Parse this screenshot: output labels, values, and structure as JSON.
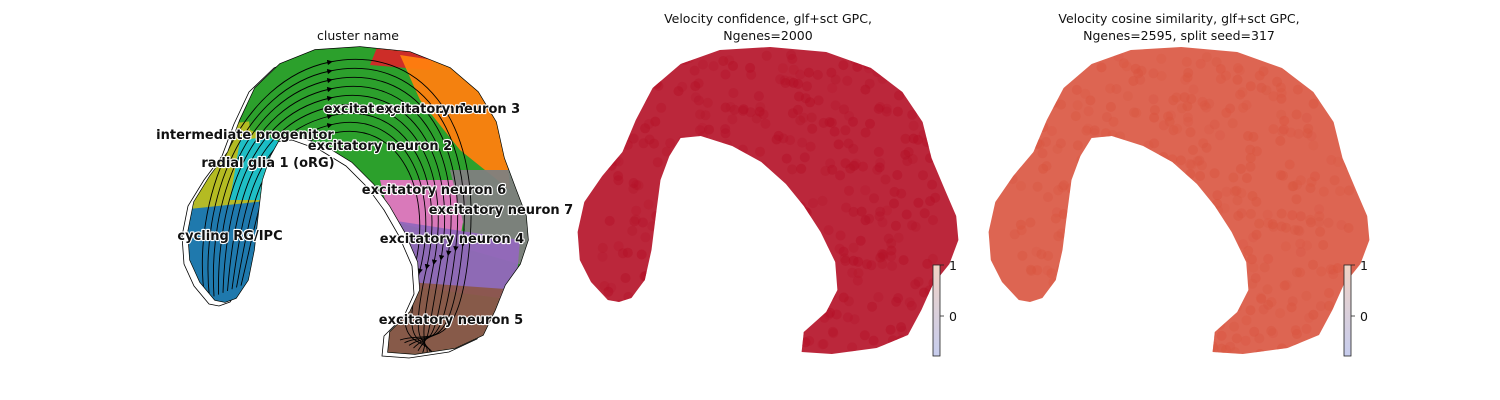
{
  "colors": {
    "radial glia 1 (oRG)": "#17becf",
    "cycling RG/IPC": "#1f77b4",
    "intermediate progenitor": "#bcbd22",
    "excitatory neuron 1": "#d62728",
    "excitatory neuron 2": "#2ca02c",
    "excitatory neuron 3": "#ff7f0e",
    "excitatory neuron 4": "#9467bd",
    "excitatory neuron 5": "#8c564b",
    "excitatory neuron 6": "#e377c2",
    "excitatory neuron 7": "#7f7f7f",
    "confidence": "#b40f26",
    "cosine": "#d9543f",
    "colorbar_high": "#f0d2c4",
    "colorbar_low": "#c7cdee"
  },
  "chart_data": [
    {
      "type": "scatter",
      "title": "cluster name",
      "legend": "on data",
      "grid": false,
      "arrows": "streamlines",
      "categories": [
        {
          "name": "intermediate progenitor",
          "label": "intermediate progenitor"
        },
        {
          "name": "radial glia 1 (oRG)",
          "label": "radial glia 1 (oRG)"
        },
        {
          "name": "cycling RG/IPC",
          "label": "cycling RG/IPC"
        },
        {
          "name": "excitatory neuron 1",
          "label": "excitatory neuron 1"
        },
        {
          "name": "excitatory neuron 3",
          "label": "excitatory neuron 3"
        },
        {
          "name": "excitatory neuron 2",
          "label": "excitatory neuron 2"
        },
        {
          "name": "excitatory neuron 6",
          "label": "excitatory neuron 6"
        },
        {
          "name": "excitatory neuron 7",
          "label": "excitatory neuron 7"
        },
        {
          "name": "excitatory neuron 4",
          "label": "excitatory neuron 4"
        },
        {
          "name": "excitatory neuron 5",
          "label": "excitatory neuron 5"
        }
      ]
    },
    {
      "type": "scatter",
      "title_line1": "Velocity confidence, glf+sct GPC,",
      "title_line2": "Ngenes=2000",
      "colorbar": {
        "ticks": [
          "1",
          "0"
        ],
        "range": [
          -0.7,
          1
        ]
      }
    },
    {
      "type": "scatter",
      "title_line1": "Velocity cosine similarity, glf+sct GPC,",
      "title_line2": "Ngenes=2595, split seed=317",
      "colorbar": {
        "ticks": [
          "1",
          "0"
        ],
        "range": [
          -0.7,
          1
        ]
      }
    }
  ]
}
